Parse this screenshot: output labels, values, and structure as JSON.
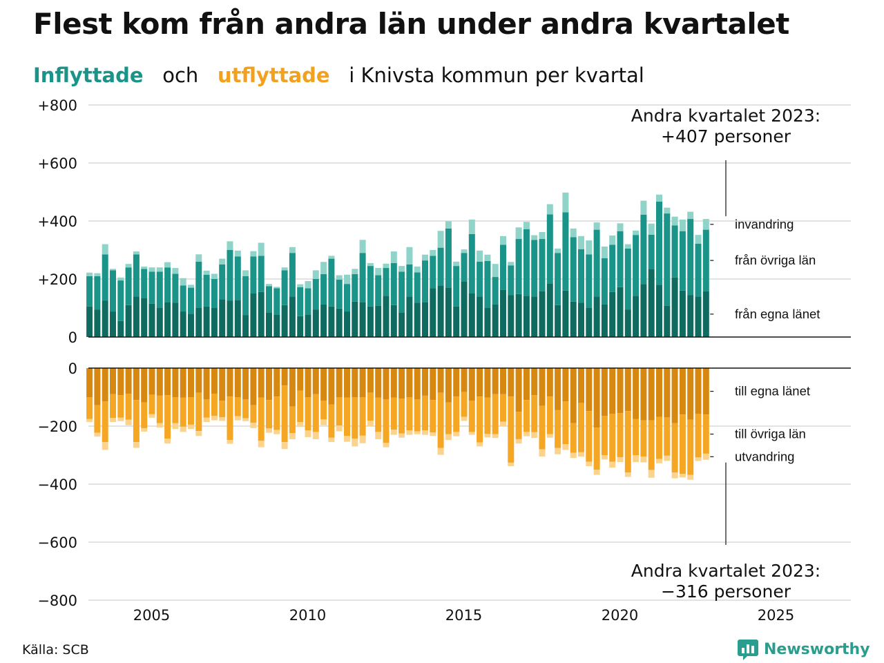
{
  "title": "Flest kom från andra län under andra kvartalet",
  "subtitle": {
    "in_label": "Inflyttade",
    "and": "och",
    "out_label": "utflyttade",
    "rest": "i Knivsta  kommun  per  kvartal"
  },
  "source": "Källa: SCB",
  "brand": "Newsworthy",
  "colors": {
    "in_own": "#0f6b60",
    "in_other": "#1a9488",
    "in_imm": "#8fd3c9",
    "out_own": "#d68810",
    "out_other": "#f5a623",
    "out_emi": "#fbd38d",
    "grid": "#d9d9d9",
    "axis": "#111111"
  },
  "chart_data": {
    "type": "bar",
    "stacked": true,
    "x_start": "2003 Q1",
    "x_end": "2023 Q2",
    "x_ticks": [
      "2005",
      "2010",
      "2015",
      "2020",
      "2025"
    ],
    "top_panel": {
      "ylim": [
        0,
        800
      ],
      "y_ticks": [
        "0",
        "+200",
        "+400",
        "+600",
        "+800"
      ],
      "series_labels": [
        "från egna länet",
        "från övriga län",
        "invandring"
      ],
      "own": [
        105,
        95,
        125,
        88,
        55,
        110,
        140,
        135,
        115,
        100,
        120,
        118,
        88,
        80,
        100,
        105,
        100,
        130,
        125,
        128,
        75,
        150,
        155,
        85,
        78,
        110,
        140,
        72,
        78,
        95,
        112,
        105,
        98,
        88,
        122,
        120,
        105,
        108,
        142,
        110,
        85,
        140,
        118,
        120,
        168,
        178,
        170,
        105,
        192,
        150,
        140,
        100,
        112,
        162,
        145,
        148,
        142,
        140,
        158,
        185,
        110,
        160,
        122,
        118,
        100,
        140,
        112,
        155,
        172,
        95,
        142,
        182,
        235,
        180,
        108,
        205,
        160,
        145,
        140,
        158
      ],
      "other": [
        105,
        115,
        160,
        142,
        140,
        130,
        145,
        100,
        110,
        125,
        120,
        100,
        90,
        90,
        160,
        110,
        100,
        120,
        175,
        150,
        135,
        128,
        125,
        90,
        90,
        120,
        150,
        100,
        90,
        105,
        105,
        165,
        100,
        95,
        95,
        170,
        140,
        105,
        96,
        145,
        140,
        110,
        105,
        144,
        112,
        130,
        204,
        140,
        98,
        205,
        120,
        162,
        95,
        156,
        102,
        190,
        230,
        195,
        180,
        238,
        180,
        270,
        222,
        185,
        185,
        230,
        160,
        163,
        193,
        210,
        210,
        240,
        118,
        287,
        318,
        180,
        205,
        262,
        182,
        212
      ],
      "imm": [
        12,
        10,
        35,
        5,
        10,
        12,
        10,
        8,
        15,
        15,
        18,
        20,
        25,
        10,
        25,
        14,
        18,
        20,
        30,
        20,
        20,
        18,
        45,
        8,
        5,
        10,
        20,
        10,
        25,
        30,
        42,
        10,
        15,
        32,
        18,
        45,
        10,
        25,
        15,
        40,
        20,
        60,
        20,
        20,
        20,
        58,
        25,
        15,
        12,
        50,
        38,
        22,
        45,
        30,
        12,
        40,
        25,
        16,
        24,
        35,
        15,
        68,
        30,
        45,
        48,
        25,
        40,
        32,
        27,
        15,
        15,
        48,
        38,
        24,
        20,
        30,
        40,
        25,
        30,
        37
      ],
      "annotation": [
        "Andra kvartalet 2023:",
        "+407 personer"
      ]
    },
    "bottom_panel": {
      "ylim": [
        -800,
        0
      ],
      "y_ticks": [
        "0",
        "−200",
        "−400",
        "−600",
        "−800"
      ],
      "series_labels": [
        "till egna länet",
        "till övriga län",
        "utvandring"
      ],
      "own": [
        100,
        128,
        115,
        90,
        93,
        88,
        110,
        118,
        92,
        95,
        93,
        100,
        102,
        100,
        85,
        108,
        88,
        112,
        98,
        100,
        108,
        128,
        102,
        110,
        98,
        60,
        132,
        78,
        100,
        90,
        112,
        125,
        100,
        102,
        100,
        100,
        85,
        102,
        108,
        102,
        105,
        100,
        108,
        95,
        110,
        85,
        118,
        98,
        82,
        112,
        98,
        102,
        90,
        90,
        98,
        150,
        110,
        93,
        130,
        98,
        145,
        115,
        190,
        120,
        148,
        205,
        165,
        158,
        155,
        148,
        175,
        180,
        180,
        168,
        170,
        190,
        160,
        178,
        158,
        160
      ],
      "other": [
        75,
        95,
        140,
        82,
        78,
        90,
        145,
        89,
        67,
        95,
        150,
        90,
        100,
        95,
        132,
        63,
        77,
        57,
        150,
        66,
        65,
        60,
        148,
        98,
        115,
        195,
        92,
        108,
        115,
        130,
        65,
        115,
        98,
        132,
        143,
        133,
        96,
        118,
        150,
        110,
        120,
        115,
        110,
        120,
        112,
        190,
        110,
        122,
        86,
        108,
        158,
        125,
        138,
        95,
        228,
        95,
        110,
        128,
        150,
        130,
        130,
        147,
        102,
        170,
        175,
        145,
        135,
        165,
        152,
        212,
        125,
        125,
        171,
        145,
        132,
        170,
        205,
        190,
        150,
        135
      ],
      "emi": [
        11,
        13,
        27,
        14,
        12,
        19,
        20,
        12,
        12,
        15,
        17,
        20,
        18,
        15,
        17,
        15,
        15,
        13,
        13,
        14,
        10,
        19,
        23,
        15,
        15,
        24,
        21,
        17,
        23,
        25,
        20,
        15,
        20,
        20,
        27,
        26,
        20,
        25,
        15,
        18,
        15,
        15,
        10,
        15,
        12,
        24,
        20,
        15,
        14,
        10,
        14,
        12,
        13,
        15,
        12,
        15,
        15,
        20,
        25,
        12,
        22,
        20,
        18,
        15,
        15,
        18,
        15,
        20,
        17,
        15,
        24,
        20,
        27,
        15,
        18,
        20,
        12,
        17,
        12,
        21
      ],
      "annotation": [
        "Andra kvartalet 2023:",
        "−316 personer"
      ]
    }
  }
}
